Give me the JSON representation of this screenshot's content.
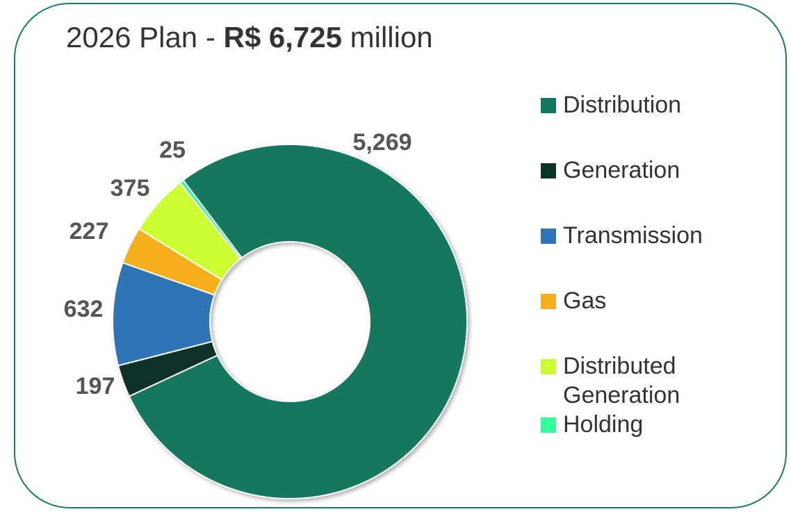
{
  "chart_data": {
    "type": "donut",
    "title": {
      "lead": "2026 Plan - ",
      "emphasis": "R$ 6,725",
      "tail": " million"
    },
    "categories": [
      "Distribution",
      "Generation",
      "Transmission",
      "Gas",
      "Distributed Generation",
      "Holding"
    ],
    "values": [
      5269,
      197,
      632,
      227,
      375,
      25
    ],
    "value_labels": [
      "5,269",
      "197",
      "632",
      "227",
      "375",
      "25"
    ],
    "colors": [
      "#12775f",
      "#0b3329",
      "#2e74b5",
      "#f6ae1b",
      "#ccff33",
      "#33ff99"
    ],
    "legend": "right"
  }
}
